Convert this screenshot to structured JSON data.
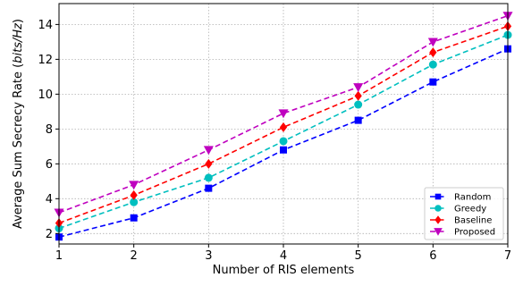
{
  "chart_data": {
    "type": "line",
    "title": "",
    "xlabel": "Number of RIS elements",
    "ylabel_main": "Average Sum Secrecy Rate (",
    "ylabel_unit": "bits/Hz",
    "ylabel_close": ")",
    "x": [
      1,
      2,
      3,
      4,
      5,
      6,
      7
    ],
    "xlim": [
      1,
      7
    ],
    "ylim": [
      1.4,
      15.2
    ],
    "xticks": [
      1,
      2,
      3,
      4,
      5,
      6,
      7
    ],
    "yticks": [
      2,
      4,
      6,
      8,
      10,
      12,
      14
    ],
    "grid": true,
    "legend_position": "lower-right",
    "series": [
      {
        "name": "Random",
        "color": "#0000ff",
        "marker": "square",
        "values": [
          1.8,
          2.9,
          4.6,
          6.8,
          8.5,
          10.7,
          12.6
        ]
      },
      {
        "name": "Greedy",
        "color": "#00bfbf",
        "marker": "circle",
        "values": [
          2.3,
          3.8,
          5.2,
          7.3,
          9.4,
          11.7,
          13.4
        ]
      },
      {
        "name": "Baseline",
        "color": "#ff0000",
        "marker": "diamond",
        "values": [
          2.6,
          4.2,
          6.0,
          8.1,
          9.9,
          12.4,
          13.9
        ]
      },
      {
        "name": "Proposed",
        "color": "#bf00bf",
        "marker": "triangle-down",
        "values": [
          3.2,
          4.8,
          6.8,
          8.9,
          10.4,
          13.0,
          14.5
        ]
      }
    ]
  }
}
